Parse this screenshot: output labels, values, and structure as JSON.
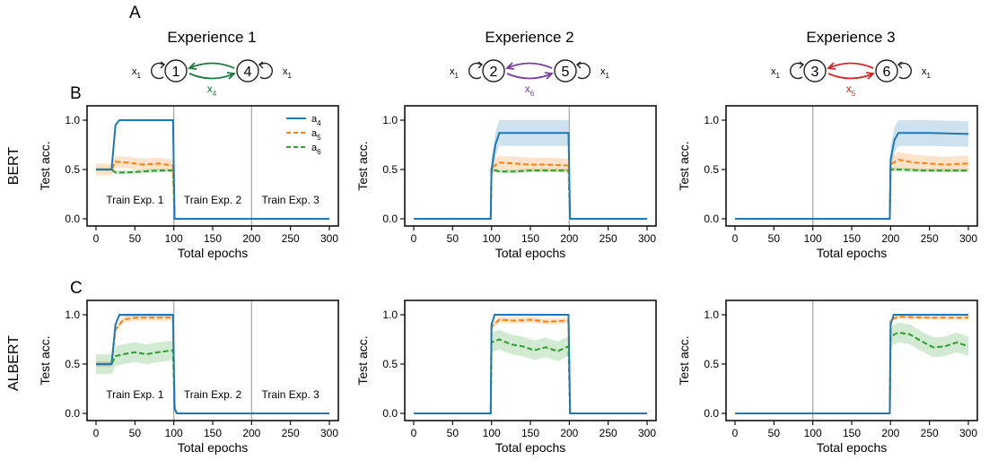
{
  "panel_letters": {
    "A": "A",
    "B": "B",
    "C": "C"
  },
  "colors": {
    "a4": "#1f77b4",
    "a5": "#ff7f0e",
    "a6": "#2ca02c",
    "exp1_arrow": "#1b7a3e",
    "exp2_arrow": "#7a3fa0",
    "exp3_arrow": "#d62728",
    "epoch_line": "#aaaaaa"
  },
  "experiences": [
    {
      "title": "Experience 1",
      "left_node": "1",
      "right_node": "4",
      "left_input": "x",
      "left_input_sub": "1",
      "right_input": "x",
      "right_input_sub": "1",
      "transition": "x",
      "transition_sub": "4",
      "arrow_color_key": "exp1_arrow"
    },
    {
      "title": "Experience 2",
      "left_node": "2",
      "right_node": "5",
      "left_input": "x",
      "left_input_sub": "1",
      "right_input": "x",
      "right_input_sub": "1",
      "transition": "x",
      "transition_sub": "6",
      "arrow_color_key": "exp2_arrow"
    },
    {
      "title": "Experience 3",
      "left_node": "3",
      "right_node": "6",
      "left_input": "x",
      "left_input_sub": "1",
      "right_input": "x",
      "right_input_sub": "1",
      "transition": "x",
      "transition_sub": "5",
      "arrow_color_key": "exp3_arrow"
    }
  ],
  "rows": [
    {
      "label": "BERT",
      "letter_key": "B"
    },
    {
      "label": "ALBERT",
      "letter_key": "C"
    }
  ],
  "legend": [
    {
      "name": "a",
      "sub": "4",
      "color_key": "a4"
    },
    {
      "name": "a",
      "sub": "5",
      "color_key": "a5"
    },
    {
      "name": "a",
      "sub": "6",
      "color_key": "a6"
    }
  ],
  "train_labels": [
    "Train Exp. 1",
    "Train Exp. 2",
    "Train Exp. 3"
  ],
  "chart_data": [
    {
      "type": "line",
      "row": "BERT",
      "experience": 1,
      "xlabel": "Total epochs",
      "ylabel": "Test acc.",
      "xlim": [
        0,
        300
      ],
      "ylim": [
        0,
        1
      ],
      "xticks": [
        0,
        50,
        100,
        150,
        200,
        250,
        300
      ],
      "yticks": [
        0.0,
        0.5,
        1.0
      ],
      "vlines": [
        100,
        200
      ],
      "series": [
        {
          "name": "a4",
          "x": [
            0,
            20,
            25,
            30,
            99,
            101,
            300
          ],
          "values": [
            0.5,
            0.5,
            0.95,
            1.0,
            1.0,
            0.0,
            0.0
          ],
          "band": 0.0
        },
        {
          "name": "a5",
          "x": [
            0,
            20,
            25,
            40,
            60,
            80,
            99,
            101,
            300
          ],
          "values": [
            0.5,
            0.5,
            0.58,
            0.57,
            0.55,
            0.56,
            0.54,
            0.0,
            0.0
          ],
          "band": 0.06
        },
        {
          "name": "a6",
          "x": [
            0,
            20,
            25,
            40,
            60,
            80,
            99,
            101,
            300
          ],
          "values": [
            0.5,
            0.5,
            0.47,
            0.47,
            0.48,
            0.49,
            0.49,
            0.0,
            0.0
          ],
          "band": 0.02
        }
      ]
    },
    {
      "type": "line",
      "row": "BERT",
      "experience": 2,
      "xlabel": "Total epochs",
      "ylabel": "Test acc.",
      "xlim": [
        0,
        300
      ],
      "ylim": [
        0,
        1
      ],
      "xticks": [
        0,
        50,
        100,
        150,
        200,
        250,
        300
      ],
      "yticks": [
        0.0,
        0.5,
        1.0
      ],
      "vlines": [
        200
      ],
      "series": [
        {
          "name": "a4",
          "x": [
            0,
            99,
            100,
            105,
            110,
            199,
            201,
            300
          ],
          "values": [
            0.0,
            0.0,
            0.5,
            0.75,
            0.87,
            0.87,
            0.0,
            0.0
          ],
          "band": 0.13
        },
        {
          "name": "a5",
          "x": [
            0,
            99,
            100,
            110,
            130,
            150,
            170,
            199,
            201,
            300
          ],
          "values": [
            0.0,
            0.0,
            0.52,
            0.57,
            0.56,
            0.55,
            0.55,
            0.54,
            0.0,
            0.0
          ],
          "band": 0.07
        },
        {
          "name": "a6",
          "x": [
            0,
            99,
            100,
            110,
            130,
            150,
            170,
            199,
            201,
            300
          ],
          "values": [
            0.0,
            0.0,
            0.5,
            0.48,
            0.48,
            0.49,
            0.49,
            0.49,
            0.0,
            0.0
          ],
          "band": 0.02
        }
      ]
    },
    {
      "type": "line",
      "row": "BERT",
      "experience": 3,
      "xlabel": "Total epochs",
      "ylabel": "Test acc.",
      "xlim": [
        0,
        300
      ],
      "ylim": [
        0,
        1
      ],
      "xticks": [
        0,
        50,
        100,
        150,
        200,
        250,
        300
      ],
      "yticks": [
        0.0,
        0.5,
        1.0
      ],
      "vlines": [
        100
      ],
      "series": [
        {
          "name": "a4",
          "x": [
            0,
            199,
            200,
            205,
            210,
            250,
            300
          ],
          "values": [
            0.0,
            0.0,
            0.6,
            0.8,
            0.87,
            0.87,
            0.86
          ],
          "band": 0.13
        },
        {
          "name": "a5",
          "x": [
            0,
            199,
            200,
            210,
            230,
            250,
            270,
            300
          ],
          "values": [
            0.0,
            0.0,
            0.55,
            0.6,
            0.57,
            0.56,
            0.55,
            0.56
          ],
          "band": 0.08
        },
        {
          "name": "a6",
          "x": [
            0,
            199,
            200,
            210,
            240,
            270,
            300
          ],
          "values": [
            0.0,
            0.0,
            0.5,
            0.5,
            0.49,
            0.49,
            0.49
          ],
          "band": 0.02
        }
      ]
    },
    {
      "type": "line",
      "row": "ALBERT",
      "experience": 1,
      "xlabel": "Total epochs",
      "ylabel": "Test acc.",
      "xlim": [
        0,
        300
      ],
      "ylim": [
        0,
        1
      ],
      "xticks": [
        0,
        50,
        100,
        150,
        200,
        250,
        300
      ],
      "yticks": [
        0.0,
        0.5,
        1.0
      ],
      "vlines": [
        100,
        200
      ],
      "series": [
        {
          "name": "a4",
          "x": [
            0,
            20,
            25,
            30,
            99,
            101,
            104,
            300
          ],
          "values": [
            0.5,
            0.5,
            0.9,
            1.0,
            1.0,
            0.05,
            0.0,
            0.0
          ],
          "band": 0.02
        },
        {
          "name": "a5",
          "x": [
            0,
            20,
            25,
            35,
            50,
            70,
            99,
            101,
            104,
            300
          ],
          "values": [
            0.5,
            0.5,
            0.85,
            0.95,
            0.97,
            0.97,
            0.97,
            0.05,
            0.0,
            0.0
          ],
          "band": 0.03
        },
        {
          "name": "a6",
          "x": [
            0,
            20,
            25,
            35,
            50,
            65,
            80,
            99,
            101,
            104,
            300
          ],
          "values": [
            0.5,
            0.5,
            0.58,
            0.6,
            0.62,
            0.6,
            0.62,
            0.64,
            0.05,
            0.0,
            0.0
          ],
          "band": 0.1
        }
      ]
    },
    {
      "type": "line",
      "row": "ALBERT",
      "experience": 2,
      "xlabel": "Total epochs",
      "ylabel": "Test acc.",
      "xlim": [
        0,
        300
      ],
      "ylim": [
        0,
        1
      ],
      "xticks": [
        0,
        50,
        100,
        150,
        200,
        250,
        300
      ],
      "yticks": [
        0.0,
        0.5,
        1.0
      ],
      "vlines": [],
      "series": [
        {
          "name": "a4",
          "x": [
            0,
            99,
            100,
            104,
            199,
            201,
            300
          ],
          "values": [
            0.0,
            0.0,
            0.9,
            1.0,
            1.0,
            0.0,
            0.0
          ],
          "band": 0.0
        },
        {
          "name": "a5",
          "x": [
            0,
            99,
            100,
            110,
            130,
            150,
            170,
            199,
            201,
            300
          ],
          "values": [
            0.0,
            0.0,
            0.88,
            0.95,
            0.94,
            0.95,
            0.93,
            0.94,
            0.0,
            0.0
          ],
          "band": 0.03
        },
        {
          "name": "a6",
          "x": [
            0,
            99,
            100,
            110,
            125,
            140,
            155,
            170,
            185,
            199,
            201,
            300
          ],
          "values": [
            0.0,
            0.0,
            0.72,
            0.75,
            0.7,
            0.68,
            0.64,
            0.67,
            0.63,
            0.68,
            0.0,
            0.0
          ],
          "band": 0.1
        }
      ]
    },
    {
      "type": "line",
      "row": "ALBERT",
      "experience": 3,
      "xlabel": "Total epochs",
      "ylabel": "Test acc.",
      "xlim": [
        0,
        300
      ],
      "ylim": [
        0,
        1
      ],
      "xticks": [
        0,
        50,
        100,
        150,
        200,
        250,
        300
      ],
      "yticks": [
        0.0,
        0.5,
        1.0
      ],
      "vlines": [
        100
      ],
      "series": [
        {
          "name": "a4",
          "x": [
            0,
            199,
            200,
            204,
            300
          ],
          "values": [
            0.0,
            0.0,
            0.9,
            1.0,
            1.0
          ],
          "band": 0.0
        },
        {
          "name": "a5",
          "x": [
            0,
            199,
            200,
            210,
            250,
            300
          ],
          "values": [
            0.0,
            0.0,
            0.95,
            0.98,
            0.97,
            0.97
          ],
          "band": 0.02
        },
        {
          "name": "a6",
          "x": [
            0,
            199,
            200,
            210,
            225,
            240,
            255,
            270,
            285,
            300
          ],
          "values": [
            0.0,
            0.0,
            0.78,
            0.82,
            0.8,
            0.73,
            0.67,
            0.68,
            0.72,
            0.68
          ],
          "band": 0.1
        }
      ]
    }
  ]
}
